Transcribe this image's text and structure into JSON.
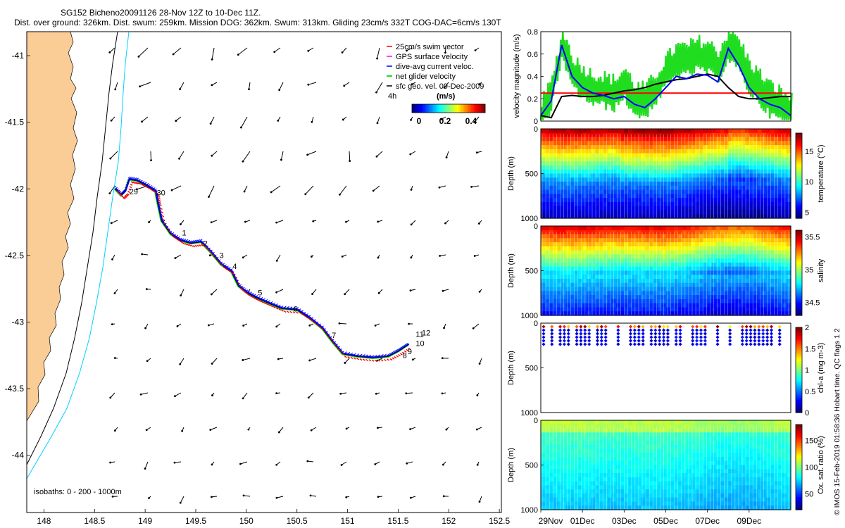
{
  "header": {
    "line1": "SG152 Bicheno20091126 28-Nov 12Z to 10-Dec 11Z.",
    "line2": "Dist. over ground: 326km. Dist. swum: 259km. Mission DOG: 362km. Swum: 313km. Gliding 23cm/s 332T COG-DAC=6cm/s 130T"
  },
  "copyright": "© IMOS 15-Feb-2019 01:58:36 Hobart time. QC flags 1  2",
  "colors": {
    "land": "#fbcd96",
    "isobath_shallow": "#00d0ff",
    "isobath_deep": "#000000",
    "swim_vector": "#ff0000",
    "gps_surface": "#ff00ff",
    "dive_avg_current": "#0000ff",
    "net_glider": "#20dd20",
    "sfc_geo": "#000000",
    "threshold_line": "#ff0000"
  },
  "chart_data": [
    {
      "type": "scatter",
      "panel": "track-map",
      "x_ticks": [
        148,
        148.5,
        149,
        149.5,
        150,
        150.5,
        151,
        151.5,
        152,
        152.5
      ],
      "y_ticks": [
        -41,
        -41.5,
        -42,
        -42.5,
        -43,
        -43.5,
        -44
      ],
      "xlim": [
        147.83,
        152.52
      ],
      "ylim": [
        -44.43,
        -40.82
      ],
      "legend": {
        "placement": "top-right",
        "entries": [
          "25cm/s swim vector",
          "GPS surface velocity",
          "dive-avg current veloc.",
          "net glider velocity",
          "sfc geo. vel. 09-Dec-2009"
        ]
      },
      "colorbar": {
        "label": "(m/s)",
        "ticks": [
          "0",
          "0.2",
          "0.4"
        ],
        "annotation": "4h"
      },
      "isobath_note": "isobaths: 0 - 200 - 1000m",
      "track": [
        [
          148.7,
          -42.0
        ],
        [
          148.76,
          -42.05
        ],
        [
          148.8,
          -42.02
        ],
        [
          148.84,
          -41.93
        ],
        [
          148.92,
          -41.94
        ],
        [
          149.02,
          -41.98
        ],
        [
          149.1,
          -42.02
        ],
        [
          149.12,
          -42.1
        ],
        [
          149.16,
          -42.24
        ],
        [
          149.25,
          -42.34
        ],
        [
          149.35,
          -42.39
        ],
        [
          149.45,
          -42.41
        ],
        [
          149.55,
          -42.4
        ],
        [
          149.65,
          -42.48
        ],
        [
          149.75,
          -42.57
        ],
        [
          149.85,
          -42.62
        ],
        [
          149.92,
          -42.73
        ],
        [
          150.0,
          -42.78
        ],
        [
          150.1,
          -42.82
        ],
        [
          150.22,
          -42.86
        ],
        [
          150.35,
          -42.9
        ],
        [
          150.5,
          -42.91
        ],
        [
          150.62,
          -42.97
        ],
        [
          150.75,
          -43.05
        ],
        [
          150.85,
          -43.15
        ],
        [
          150.95,
          -43.24
        ],
        [
          151.1,
          -43.26
        ],
        [
          151.25,
          -43.27
        ],
        [
          151.4,
          -43.26
        ],
        [
          151.5,
          -43.22
        ],
        [
          151.6,
          -43.17
        ]
      ],
      "day_labels": [
        {
          "label": "29",
          "lon": 148.83,
          "lat": -42.04
        },
        {
          "label": "30",
          "lon": 149.1,
          "lat": -42.05
        },
        {
          "label": "1",
          "lon": 149.35,
          "lat": -42.35
        },
        {
          "label": "2",
          "lon": 149.56,
          "lat": -42.43
        },
        {
          "label": "3",
          "lon": 149.72,
          "lat": -42.52
        },
        {
          "label": "4",
          "lon": 149.85,
          "lat": -42.6
        },
        {
          "label": "5",
          "lon": 150.1,
          "lat": -42.8
        },
        {
          "label": "6",
          "lon": 150.45,
          "lat": -42.92
        },
        {
          "label": "7",
          "lon": 150.83,
          "lat": -43.12
        },
        {
          "label": "8",
          "lon": 151.53,
          "lat": -43.27
        },
        {
          "label": "9",
          "lon": 151.58,
          "lat": -43.24
        },
        {
          "label": "10",
          "lon": 151.66,
          "lat": -43.18
        },
        {
          "label": "11",
          "lon": 151.66,
          "lat": -43.11
        },
        {
          "label": "12",
          "lon": 151.72,
          "lat": -43.1
        }
      ]
    },
    {
      "type": "line",
      "panel": "velocity-magnitude",
      "ylabel": "velocity magnitude (m/s)",
      "ylim": [
        0,
        0.8
      ],
      "y_ticks": [
        "0",
        "0.2",
        "0.4",
        "0.6",
        "0.8"
      ],
      "x": [
        0,
        0.5,
        1,
        1.5,
        2,
        2.5,
        3,
        3.5,
        4,
        4.5,
        5,
        5.5,
        6,
        6.5,
        7,
        7.5,
        8,
        8.5,
        9,
        9.5,
        10,
        10.5,
        11,
        11.5,
        12
      ],
      "series": [
        {
          "name": "dive-avg current veloc.",
          "values": [
            0.05,
            0.18,
            0.68,
            0.4,
            0.3,
            0.25,
            0.23,
            0.2,
            0.22,
            0.15,
            0.12,
            0.2,
            0.3,
            0.4,
            0.38,
            0.42,
            0.41,
            0.35,
            0.65,
            0.5,
            0.3,
            0.2,
            0.15,
            0.12,
            0.05
          ]
        },
        {
          "name": "net glider velocity",
          "values": [
            0.05,
            0.25,
            0.7,
            0.45,
            0.35,
            0.3,
            0.28,
            0.25,
            0.35,
            0.2,
            0.18,
            0.3,
            0.45,
            0.55,
            0.55,
            0.6,
            0.58,
            0.5,
            0.7,
            0.6,
            0.4,
            0.3,
            0.2,
            0.15,
            0.08
          ]
        },
        {
          "name": "sfc geo. vel.",
          "values": [
            0.05,
            0.03,
            0.22,
            0.23,
            0.22,
            0.22,
            0.23,
            0.25,
            0.27,
            0.28,
            0.3,
            0.33,
            0.35,
            0.37,
            0.38,
            0.4,
            0.42,
            0.4,
            0.3,
            0.22,
            0.2,
            0.2,
            0.21,
            0.22,
            0.22
          ]
        },
        {
          "name": "threshold",
          "values": [
            0.25,
            0.25,
            0.25,
            0.25,
            0.25,
            0.25,
            0.25,
            0.25,
            0.25,
            0.25,
            0.25,
            0.25,
            0.25,
            0.25,
            0.25,
            0.25,
            0.25,
            0.25,
            0.25,
            0.25,
            0.25,
            0.25,
            0.25,
            0.25,
            0.25
          ]
        }
      ]
    },
    {
      "type": "heatmap",
      "panel": "temperature",
      "ylabel": "Depth (m)",
      "y_ticks": [
        "0",
        "500",
        "1000"
      ],
      "colorbar_label": "temperature (°C)",
      "colorbar_ticks": [
        "5",
        "10",
        "15"
      ],
      "cmin": 4,
      "cmax": 18
    },
    {
      "type": "heatmap",
      "panel": "salinity",
      "ylabel": "Depth (m)",
      "y_ticks": [
        "0",
        "500",
        "1000"
      ],
      "colorbar_label": "salinity",
      "colorbar_ticks": [
        "34.5",
        "35",
        "35.5"
      ],
      "cmin": 34.3,
      "cmax": 35.6
    },
    {
      "type": "heatmap",
      "panel": "chlorophyll",
      "ylabel": "Depth (m)",
      "y_ticks": [
        "0",
        "500",
        "1000"
      ],
      "colorbar_label": "chl-a (mg m-3)",
      "colorbar_ticks": [
        "0",
        "0.5",
        "1",
        "1.5",
        "2"
      ],
      "cmin": 0,
      "cmax": 2
    },
    {
      "type": "heatmap",
      "panel": "oxygen",
      "ylabel": "Depth (m)",
      "y_ticks": [
        "0",
        "500",
        "1000"
      ],
      "colorbar_label": "Ox. sat. ratio (%)",
      "colorbar_ticks": [
        "50",
        "100",
        "150"
      ],
      "cmin": 20,
      "cmax": 180
    }
  ],
  "time_axis": {
    "ticks": [
      "29Nov",
      "01Dec",
      "03Dec",
      "05Dec",
      "07Dec",
      "09Dec"
    ],
    "days_from_start": [
      0,
      2,
      4,
      6,
      8,
      10
    ],
    "span_days": 12
  }
}
